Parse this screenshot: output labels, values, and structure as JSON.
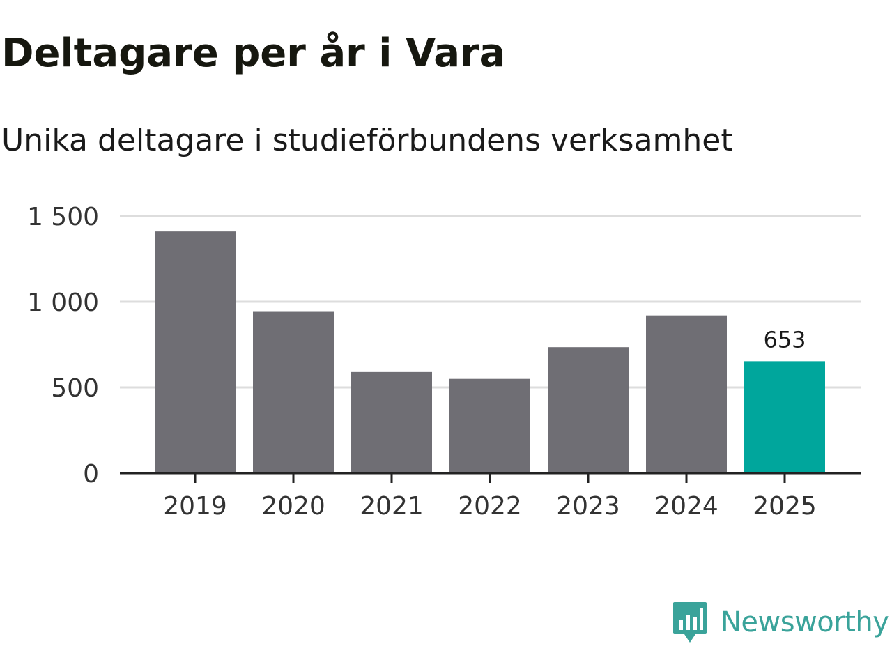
{
  "chart_data": {
    "type": "bar",
    "title": "Deltagare per år i Vara",
    "subtitle": "Unika deltagare i studieförbundens verksamhet",
    "categories": [
      "2019",
      "2020",
      "2021",
      "2022",
      "2023",
      "2024",
      "2025"
    ],
    "values": [
      1410,
      945,
      590,
      550,
      735,
      920,
      653
    ],
    "highlight_index": 6,
    "data_labels": [
      {
        "index": 6,
        "text": "653"
      }
    ],
    "ylim": [
      0,
      1500
    ],
    "yticks": [
      0,
      500,
      1000,
      1500
    ],
    "ytick_labels": [
      "0",
      "500",
      "1 000",
      "1 500"
    ],
    "xlabel": "",
    "ylabel": "",
    "grid": true,
    "colors": {
      "bar": "#6f6e74",
      "highlight": "#00a69c",
      "grid": "#dddddd",
      "axis": "#222222"
    }
  },
  "branding": {
    "name": "Newsworthy",
    "logo_icon": "newsworthy-logo-icon",
    "color": "#3aa39a"
  }
}
